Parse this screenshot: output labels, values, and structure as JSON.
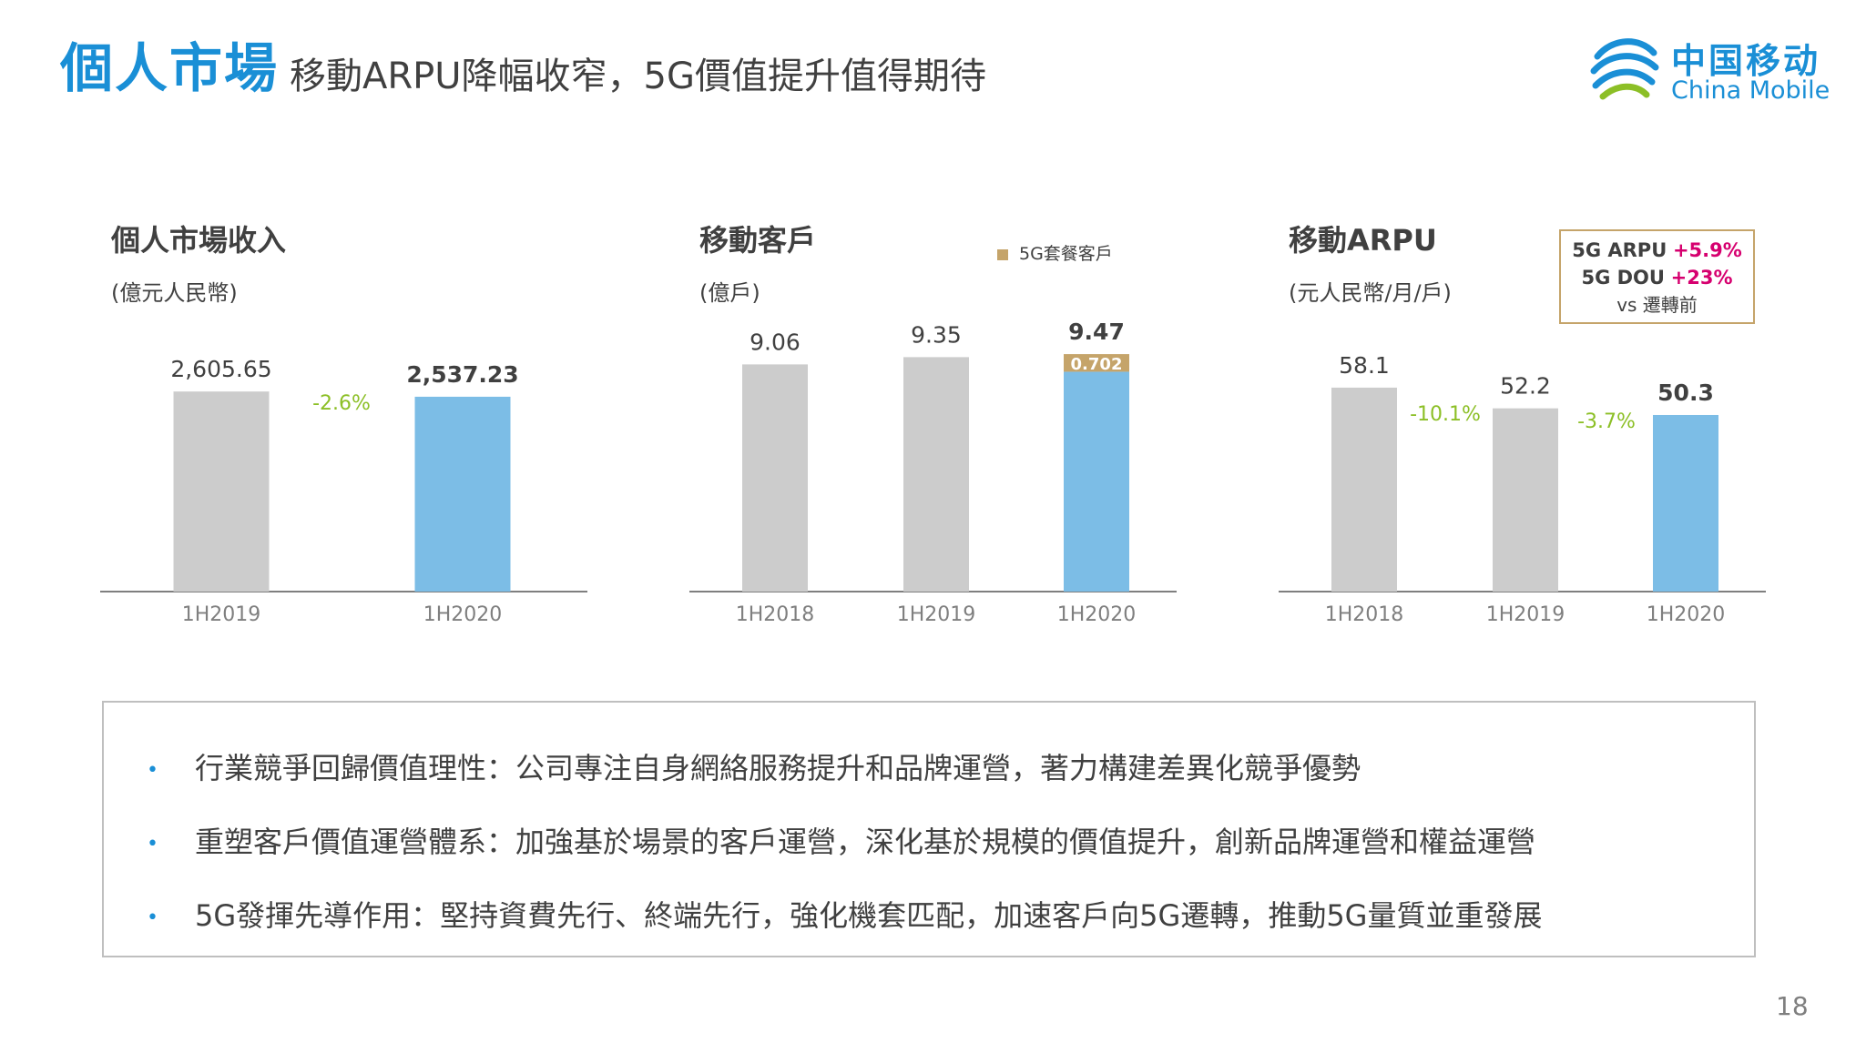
{
  "header": {
    "title": "個人市場",
    "subtitle": "移動ARPU降幅收窄，5G價值提升值得期待"
  },
  "logo": {
    "cn": "中国移动",
    "en": "China Mobile"
  },
  "colors": {
    "accent": "#1a8fd6",
    "grey_bar": "#cccccc",
    "blue_bar": "#7cbde6",
    "gold": "#c5a46a",
    "green": "#8cbf26",
    "magenta": "#d6006f"
  },
  "chart_data": [
    {
      "type": "bar",
      "title": "個人市場收入",
      "unit": "(億元人民幣)",
      "categories": [
        "1H2019",
        "1H2020"
      ],
      "values": [
        2605.65,
        2537.23
      ],
      "value_labels": [
        "2,605.65",
        "2,537.23"
      ],
      "changes": [
        "-2.6%"
      ],
      "ylim": [
        0,
        3200
      ]
    },
    {
      "type": "bar",
      "title": "移動客戶",
      "unit": "(億戶)",
      "categories": [
        "1H2018",
        "1H2019",
        "1H2020"
      ],
      "values": [
        9.06,
        9.35,
        9.47
      ],
      "value_labels": [
        "9.06",
        "9.35",
        "9.47"
      ],
      "stacked": {
        "name": "5G套餐客戶",
        "values": [
          null,
          null,
          0.702
        ],
        "label": "0.702"
      },
      "legend": "5G套餐客戶",
      "ylim": [
        0,
        9.8
      ]
    },
    {
      "type": "bar",
      "title": "移動ARPU",
      "unit": "(元人民幣/月/戶)",
      "categories": [
        "1H2018",
        "1H2019",
        "1H2020"
      ],
      "values": [
        58.1,
        52.2,
        50.3
      ],
      "value_labels": [
        "58.1",
        "52.2",
        "50.3"
      ],
      "changes": [
        "-10.1%",
        "-3.7%"
      ],
      "ylim": [
        0,
        70
      ]
    }
  ],
  "arpu_box": {
    "line1_label": "5G ARPU",
    "line1_value": "+5.9%",
    "line2_label": "5G DOU",
    "line2_value": "+23%",
    "line3": "vs 遷轉前"
  },
  "bullets": [
    "行業競爭回歸價值理性：公司專注自身網絡服務提升和品牌運營，著力構建差異化競爭優勢",
    "重塑客戶價值運營體系：加強基於場景的客戶運營，深化基於規模的價值提升，創新品牌運營和權益運營",
    "5G發揮先導作用：堅持資費先行、終端先行，強化機套匹配，加速客戶向5G遷轉，推動5G量質並重發展"
  ],
  "page_number": "18"
}
